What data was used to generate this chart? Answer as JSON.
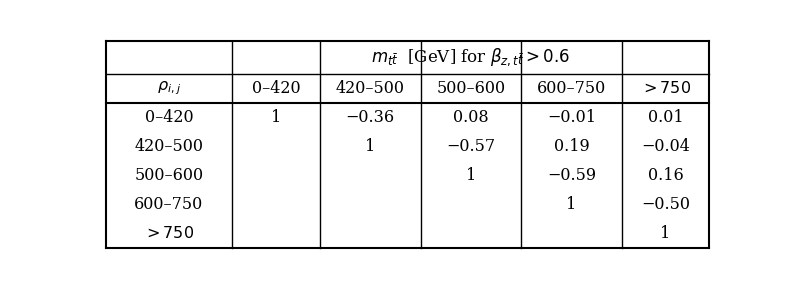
{
  "header_title": "$m_{t\\bar{t}}$  [GeV] for $\\beta_{z,t\\bar{t}} > 0.6$",
  "col_header_label": "$\\rho_{i,j}$",
  "col_headers": [
    "0–420",
    "420–500",
    "500–600",
    "600–750",
    "$> 750$"
  ],
  "row_headers": [
    "0–420",
    "420–500",
    "500–600",
    "600–750",
    "$> 750$"
  ],
  "matrix": [
    [
      "1",
      "−0.36",
      "0.08",
      "−0.01",
      "0.01"
    ],
    [
      "",
      "1",
      "−0.57",
      "0.19",
      "−0.04"
    ],
    [
      "",
      "",
      "1",
      "−0.59",
      "0.16"
    ],
    [
      "",
      "",
      "",
      "1",
      "−0.50"
    ],
    [
      "",
      "",
      "",
      "",
      "1"
    ]
  ],
  "bg_color": "#ffffff",
  "line_color": "#000000",
  "text_color": "#000000",
  "fontsize": 11.5
}
